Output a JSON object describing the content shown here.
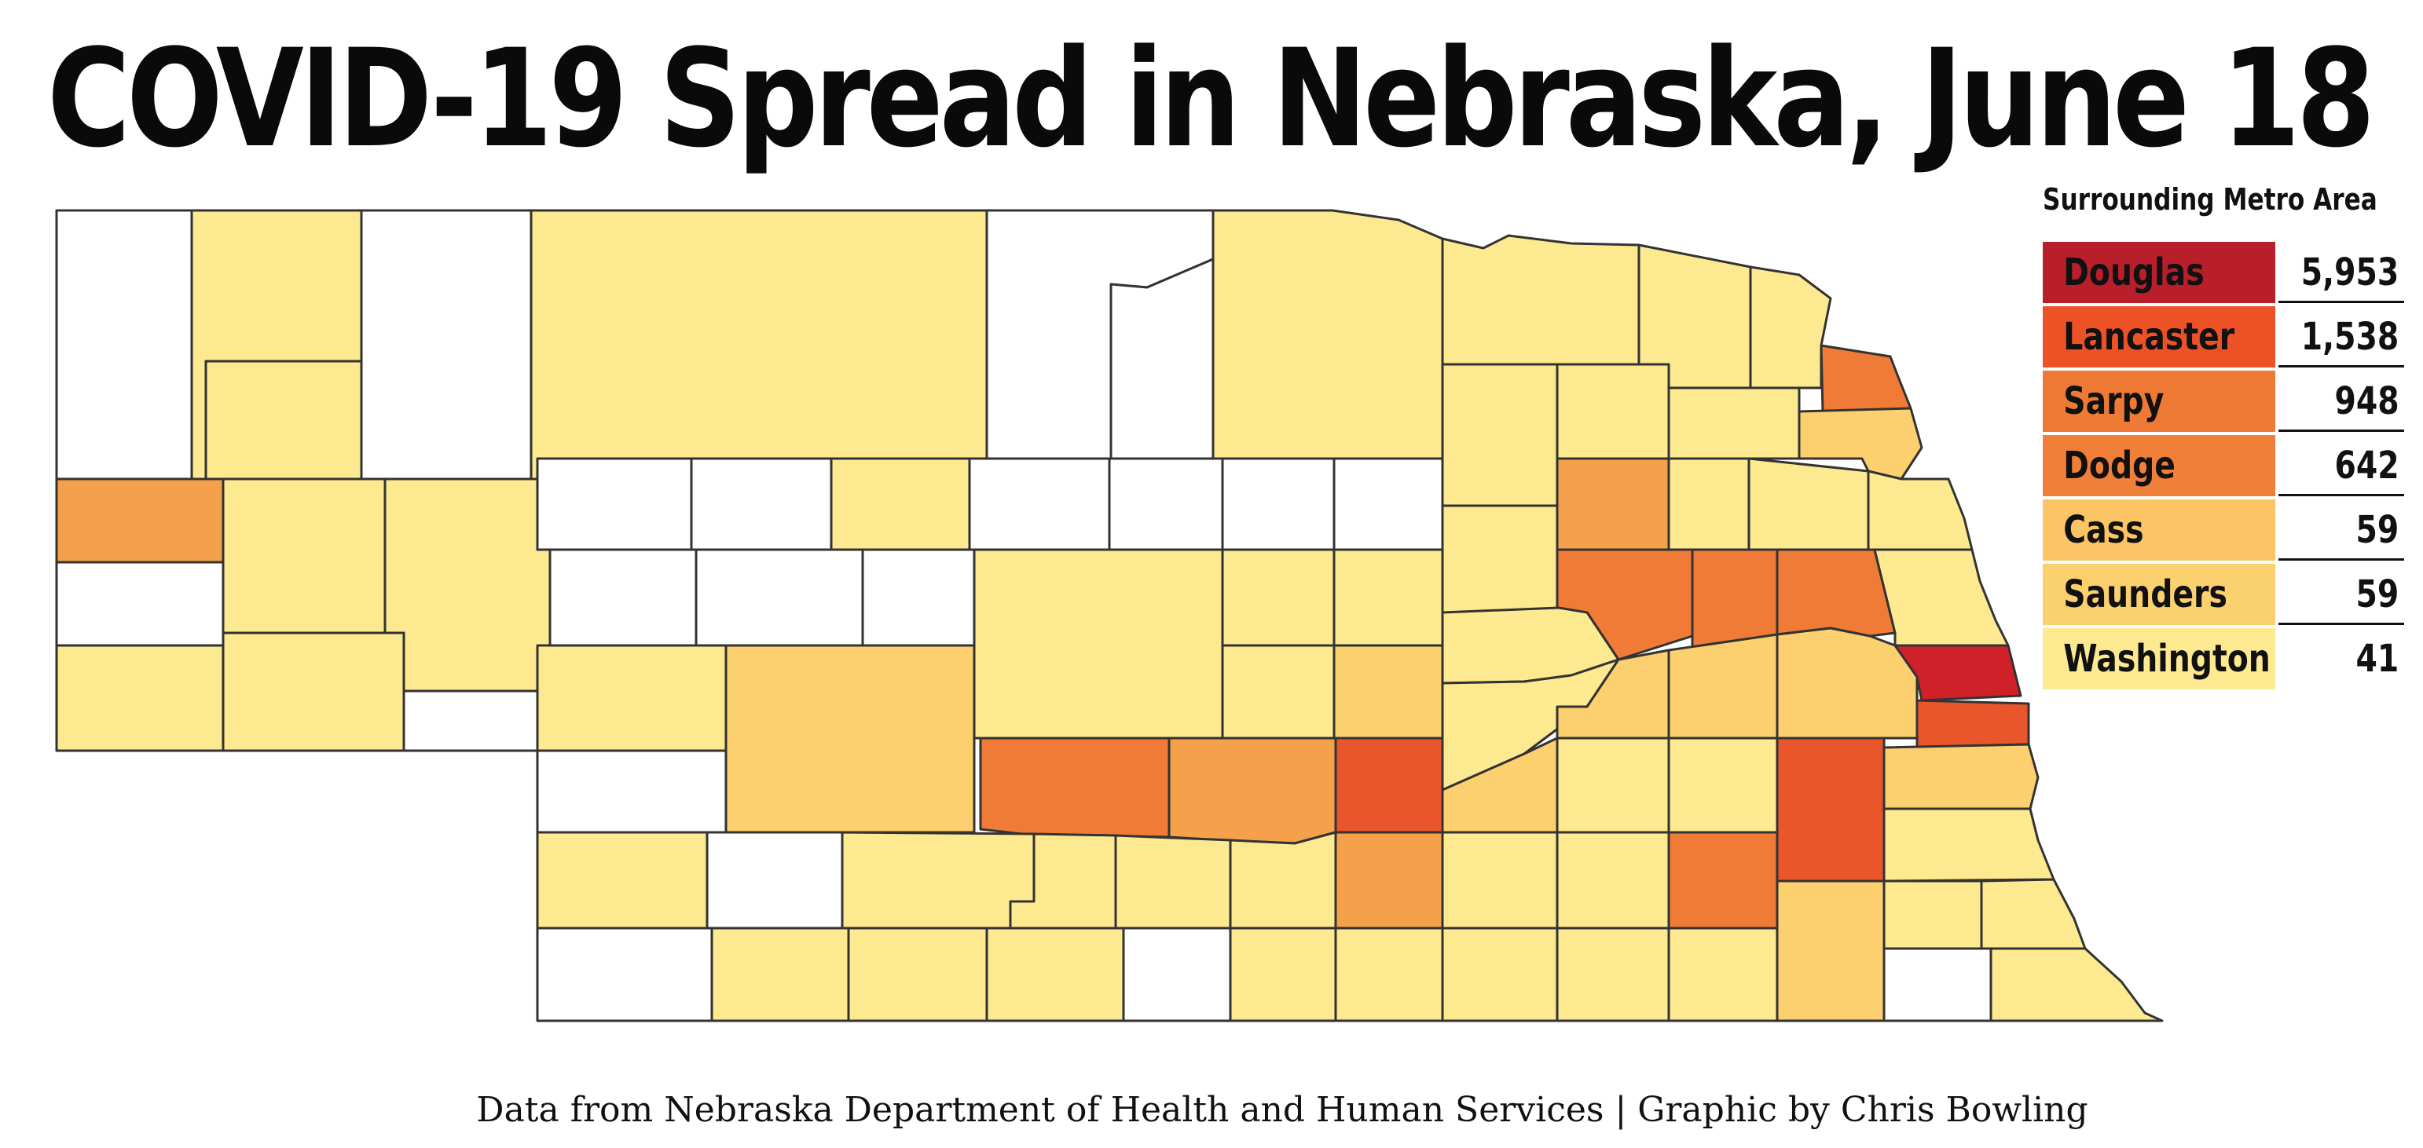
{
  "title": "COVID-19 Spread in Nebraska, June 18",
  "source": "Data from Nebraska Department of Health and Human Services | Graphic by Chris Bowling",
  "legend": {
    "title": "Surrounding Metro Area",
    "rows": [
      {
        "county": "Douglas",
        "cases": "5,953",
        "color": "#b81f2a"
      },
      {
        "county": "Lancaster",
        "cases": "1,538",
        "color": "#ed5226"
      },
      {
        "county": "Sarpy",
        "cases": "948",
        "color": "#ef7a35"
      },
      {
        "county": "Dodge",
        "cases": "642",
        "color": "#f07f3a"
      },
      {
        "county": "Cass",
        "cases": "59",
        "color": "#fbc565"
      },
      {
        "county": "Saunders",
        "cases": "59",
        "color": "#fbd06f"
      },
      {
        "county": "Washington",
        "cases": "41",
        "color": "#fde98f"
      }
    ]
  },
  "colors": {
    "none": "#ffffff",
    "low": "#fde98f",
    "medium": "#fcd06e",
    "elevated": "#f5a04a",
    "high": "#f07b37",
    "very_high": "#e9562b",
    "highest": "#d0202a",
    "border": "#333333"
  }
}
